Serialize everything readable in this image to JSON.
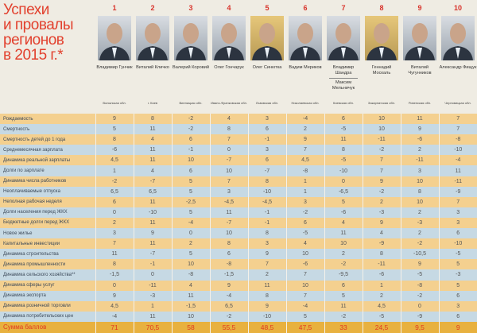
{
  "title": [
    "Успехи",
    "и провалы",
    "регионов",
    "в 2015 г.*"
  ],
  "colors": {
    "accent": "#e2412e",
    "row_odd": "#f4d08f",
    "row_even": "#c6d9e4",
    "sum_row": "#e8b13f"
  },
  "columns": [
    {
      "rank": "1",
      "name": "Владимир Гунчик",
      "region": "Волынская обл."
    },
    {
      "rank": "2",
      "name": "Виталий Кличко",
      "region": "г. Киев"
    },
    {
      "rank": "3",
      "name": "Валерий Коровий",
      "region": "Винницкая обл."
    },
    {
      "rank": "4",
      "name": "Олег Гончарук",
      "region": "Ивано-Франковская обл."
    },
    {
      "rank": "5",
      "name": "Олег Синютка",
      "region": "Львовская обл."
    },
    {
      "rank": "6",
      "name": "Вадим Мериков",
      "region": "Николаевская обл."
    },
    {
      "rank": "7",
      "name": "Владимир Шандра",
      "name2": "Максим Мельничук",
      "region": "Киевская обл."
    },
    {
      "rank": "8",
      "name": "Геннадий Москаль",
      "region": "Закарпатская обл."
    },
    {
      "rank": "9",
      "name": "Виталий Чугунников",
      "region": "Ровенская обл."
    },
    {
      "rank": "10",
      "name": "Александр Фищук",
      "region": "Черновицкая обл."
    }
  ],
  "rows": [
    {
      "label": "Рождаемость",
      "values": [
        "9",
        "8",
        "-2",
        "4",
        "3",
        "-4",
        "6",
        "10",
        "11",
        "7"
      ]
    },
    {
      "label": "Смертность",
      "values": [
        "5",
        "11",
        "-2",
        "8",
        "6",
        "2",
        "-5",
        "10",
        "9",
        "7"
      ]
    },
    {
      "label": "Смертность детей до 1 года",
      "values": [
        "8",
        "4",
        "6",
        "7",
        "-1",
        "9",
        "11",
        "-11",
        "-6",
        "-8"
      ]
    },
    {
      "label": "Среднемесячная зарплата",
      "values": [
        "-6",
        "11",
        "-1",
        "0",
        "3",
        "7",
        "8",
        "-2",
        "2",
        "-10"
      ]
    },
    {
      "label": "Динамика реальной зарплаты",
      "values": [
        "4,5",
        "11",
        "10",
        "-7",
        "6",
        "4,5",
        "-5",
        "7",
        "-11",
        "-4"
      ]
    },
    {
      "label": "Долги по зарплате",
      "values": [
        "1",
        "4",
        "6",
        "10",
        "-7",
        "-8",
        "-10",
        "7",
        "3",
        "11"
      ]
    },
    {
      "label": "Динамика числа работников",
      "values": [
        "-2",
        "-7",
        "5",
        "7",
        "8",
        "1",
        "0",
        "9",
        "10",
        "-11"
      ]
    },
    {
      "label": "Неоплачиваемые отпуска",
      "values": [
        "6,5",
        "6,5",
        "5",
        "3",
        "-10",
        "1",
        "-6,5",
        "-2",
        "8",
        "-9"
      ]
    },
    {
      "label": "Неполная рабочая неделя",
      "values": [
        "6",
        "11",
        "-2,5",
        "-4,5",
        "-4,5",
        "3",
        "5",
        "2",
        "10",
        "7"
      ]
    },
    {
      "label": "Долги населения перед ЖКХ",
      "values": [
        "0",
        "-10",
        "5",
        "11",
        "-1",
        "-2",
        "-6",
        "-3",
        "2",
        "3"
      ]
    },
    {
      "label": "Бюджетные долги перед ЖКХ",
      "values": [
        "2",
        "11",
        "-4",
        "-7",
        "-1",
        "6",
        "4",
        "9",
        "-3",
        "3"
      ]
    },
    {
      "label": "Новое жилье",
      "values": [
        "3",
        "9",
        "0",
        "10",
        "8",
        "-5",
        "11",
        "4",
        "2",
        "6"
      ]
    },
    {
      "label": "Капитальные инвестиции",
      "values": [
        "7",
        "11",
        "2",
        "8",
        "3",
        "4",
        "10",
        "-9",
        "-2",
        "-10"
      ]
    },
    {
      "label": "Динамика строительства",
      "values": [
        "11",
        "-7",
        "5",
        "6",
        "9",
        "10",
        "2",
        "8",
        "-10,5",
        "-5"
      ]
    },
    {
      "label": "Динамика промышленности",
      "values": [
        "8",
        "-1",
        "10",
        "-8",
        "7",
        "-6",
        "-2",
        "-11",
        "9",
        "5"
      ]
    },
    {
      "label": "Динамика сельского хозяйства**",
      "values": [
        "-1,5",
        "0",
        "-8",
        "-1,5",
        "2",
        "7",
        "-9,5",
        "-6",
        "-5",
        "-3"
      ]
    },
    {
      "label": "Динамика сферы услуг",
      "values": [
        "0",
        "-11",
        "4",
        "9",
        "11",
        "10",
        "6",
        "1",
        "-8",
        "5"
      ]
    },
    {
      "label": "Динамика экспорта",
      "values": [
        "9",
        "-3",
        "11",
        "-4",
        "8",
        "7",
        "5",
        "2",
        "-2",
        "6"
      ]
    },
    {
      "label": "Динамика розничной торговли",
      "values": [
        "4,5",
        "1",
        "-1,5",
        "6,5",
        "9",
        "-4",
        "11",
        "4,5",
        "0",
        "3"
      ]
    },
    {
      "label": "Динамика потребительских цен",
      "values": [
        "-4",
        "11",
        "10",
        "-2",
        "-10",
        "5",
        "-2",
        "-5",
        "-9",
        "6"
      ]
    }
  ],
  "total": {
    "label": "Сумма баллов",
    "values": [
      "71",
      "70,5",
      "58",
      "55,5",
      "48,5",
      "47,5",
      "33",
      "24,5",
      "9,5",
      "9"
    ]
  }
}
